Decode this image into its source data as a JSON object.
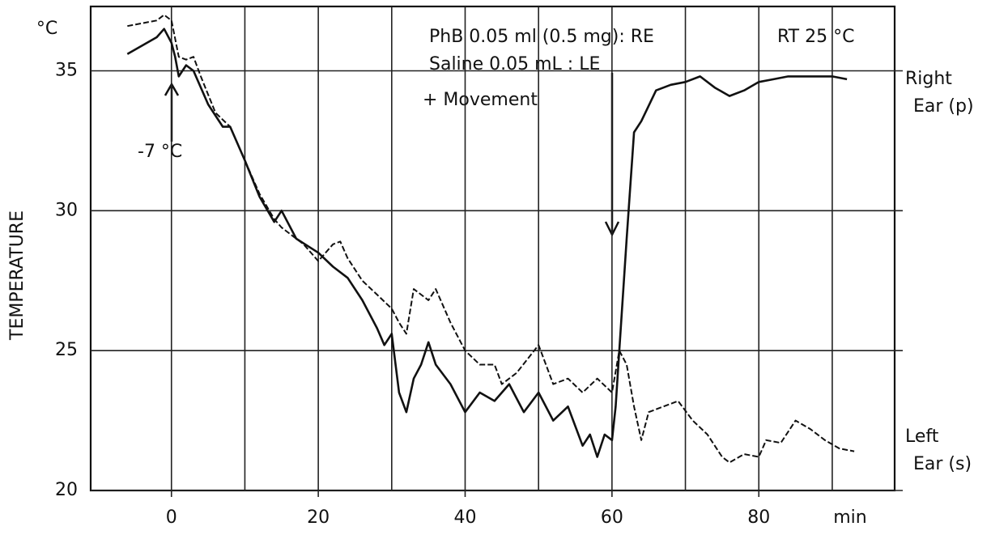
{
  "chart_data": {
    "type": "line",
    "y_unit": "°C",
    "ylabel": "TEMPERATURE",
    "xlabel": "min",
    "xlim": [
      -11,
      98.5
    ],
    "ylim": [
      20,
      37.3
    ],
    "xticks": [
      0,
      20,
      40,
      60,
      80
    ],
    "xgrid": [
      0,
      10,
      20,
      30,
      40,
      50,
      60,
      70,
      80,
      90
    ],
    "yticks": [
      20,
      25,
      30,
      35
    ],
    "grid": true,
    "annotations": [
      "PhB 0.05 ml (0.5 mg): RE",
      "Saline  0.05 mL : LE",
      "+ Movement",
      "RT  25 °C",
      "-7 °C"
    ],
    "series": [
      {
        "name": "Right Ear (p)",
        "color": "#111111",
        "style": "solid",
        "x": [
          -6,
          -2,
          -1,
          0,
          0.5,
          1,
          2,
          3,
          5,
          7,
          8,
          10,
          12,
          14,
          15,
          17,
          20,
          22,
          24,
          26,
          28,
          29,
          30,
          31,
          32,
          33,
          34,
          35,
          36,
          38,
          40,
          42,
          44,
          46,
          48,
          50,
          52,
          54,
          56,
          57,
          58,
          59,
          60,
          60.5,
          61,
          62,
          63,
          64,
          66,
          68,
          70,
          72,
          74,
          76,
          78,
          80,
          82,
          84,
          86,
          88,
          90,
          92
        ],
        "values": [
          35.6,
          36.2,
          36.5,
          36,
          35.5,
          34.8,
          35.2,
          35,
          33.8,
          33,
          33,
          31.8,
          30.5,
          29.6,
          30,
          29,
          28.5,
          28,
          27.6,
          26.8,
          25.8,
          25.2,
          25.6,
          23.5,
          22.8,
          24,
          24.5,
          25.3,
          24.5,
          23.8,
          22.8,
          23.5,
          23.2,
          23.8,
          22.8,
          23.5,
          22.5,
          23,
          21.6,
          22,
          21.2,
          22,
          21.8,
          23,
          25,
          29,
          32.8,
          33.2,
          34.3,
          34.5,
          34.6,
          34.8,
          34.4,
          34.1,
          34.3,
          34.6,
          34.7,
          34.8,
          34.8,
          34.8,
          34.8,
          34.7
        ]
      },
      {
        "name": "Left Ear (s)",
        "color": "#111111",
        "style": "dashed",
        "x": [
          -6,
          -2,
          -1,
          0,
          1,
          2,
          3,
          4,
          6,
          8,
          10,
          12,
          14,
          15,
          18,
          20,
          22,
          23,
          24,
          26,
          28,
          30,
          31,
          32,
          33,
          35,
          36,
          38,
          40,
          42,
          44,
          45,
          47,
          50,
          52,
          54,
          56,
          58,
          60,
          61,
          62,
          63,
          64,
          65,
          67,
          69,
          71,
          73,
          75,
          76,
          78,
          80,
          81,
          83,
          85,
          87,
          89,
          91,
          93
        ],
        "values": [
          36.6,
          36.8,
          37,
          36.8,
          35.5,
          35.4,
          35.5,
          34.8,
          33.5,
          33,
          31.8,
          30.6,
          29.7,
          29.4,
          28.8,
          28.2,
          28.8,
          28.9,
          28.3,
          27.5,
          27,
          26.5,
          26,
          25.6,
          27.2,
          26.8,
          27.2,
          26,
          25,
          24.5,
          24.5,
          23.8,
          24.2,
          25.2,
          23.8,
          24,
          23.5,
          24,
          23.5,
          25,
          24.5,
          23,
          21.8,
          22.8,
          23,
          23.2,
          22.5,
          22,
          21.2,
          21,
          21.3,
          21.2,
          21.8,
          21.7,
          22.5,
          22.2,
          21.8,
          21.5,
          21.4
        ]
      }
    ]
  }
}
